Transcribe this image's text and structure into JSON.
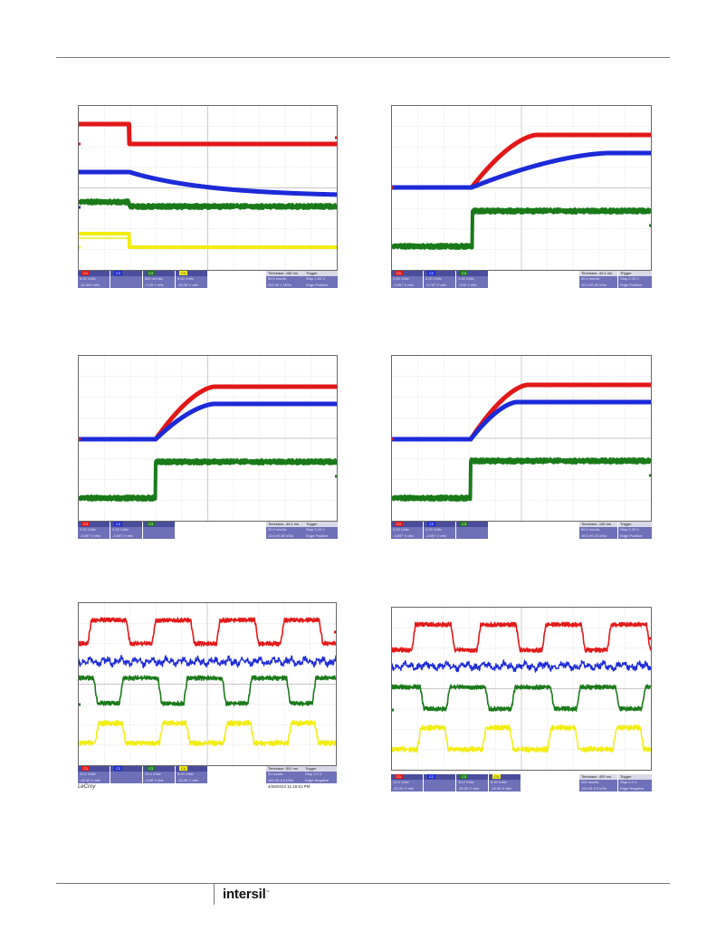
{
  "page": {
    "footer_logo": "intersil",
    "footer_logo_tm": "™"
  },
  "colors": {
    "ch1": "#e21818",
    "ch2": "#1c2ad8",
    "ch3": "#1a7a1a",
    "ch4": "#f2ec10",
    "grid": "#c7c7c7"
  },
  "scopes": [
    {
      "channels": [
        {
          "name": "C1",
          "line1": "5.00 V/div",
          "line2": "-10.60V ofst"
        },
        {
          "name": "C2",
          "line1": "",
          "line2": ""
        },
        {
          "name": "C3",
          "line1": "500 mV/div",
          "line2": "-2.00 V ofst"
        },
        {
          "name": "C4",
          "line1": "5.00 V/div",
          "line2": "-15.00 V ofst"
        }
      ],
      "timebase": {
        "label": "Timebase -180 ms",
        "line1": "50.0 ms/div",
        "line2": "200 kS  1 MS/s"
      },
      "trigger": {
        "label": "Trigger",
        "line1": "Stop  1.50 V",
        "line2": "Edge  Positive"
      },
      "timestamp": "",
      "brand": ""
    },
    {
      "channels": [
        {
          "name": "C1",
          "line1": "2.00 V/div",
          "line2": "-3.697 V ofst"
        },
        {
          "name": "C2",
          "line1": "2.00 V/div",
          "line2": "-3.797 V ofst"
        },
        {
          "name": "C3",
          "line1": "1.00 V/div",
          "line2": "-3.00 V ofst"
        }
      ],
      "timebase": {
        "label": "Timebase -40.4 ms",
        "line1": "20.0 ms/div",
        "line2": "10.0 kS  50 kS/s"
      },
      "trigger": {
        "label": "Trigger",
        "line1": "Stop  2.20 V",
        "line2": "Edge  Positive"
      },
      "timestamp": "",
      "brand": ""
    },
    {
      "channels": [
        {
          "name": "C1",
          "line1": "2.00 V/div",
          "line2": "-3.697 V ofst"
        },
        {
          "name": "C2",
          "line1": "2.00 V/div",
          "line2": "-3.697 V ofst"
        },
        {
          "name": "C3",
          "line1": "",
          "line2": ""
        }
      ],
      "timebase": {
        "label": "Timebase -40.4 ms",
        "line1": "20.0 ms/div",
        "line2": "10.0 kS  50 kS/s"
      },
      "trigger": {
        "label": "Trigger",
        "line1": "Stop  2.20 V",
        "line2": "Edge  Positive"
      },
      "timestamp": "",
      "brand": ""
    },
    {
      "channels": [
        {
          "name": "C1",
          "line1": "2.00 V/div",
          "line2": "-3.697 V ofst"
        },
        {
          "name": "C2",
          "line1": "2.00 V/div",
          "line2": "-3.697 V ofst"
        },
        {
          "name": "C3",
          "line1": "",
          "line2": ""
        }
      ],
      "timebase": {
        "label": "Timebase -190 ms",
        "line1": "50.0 ms/div",
        "line2": "10.0 kS  20 kS/s"
      },
      "trigger": {
        "label": "Trigger",
        "line1": "Stop  2.20 V",
        "line2": "Edge  Positive"
      },
      "timestamp": "",
      "brand": ""
    },
    {
      "channels": [
        {
          "name": "C1",
          "line1": "10.0 V/div",
          "line2": "-20.00 V ofst"
        },
        {
          "name": "C2",
          "line1": "",
          "line2": ""
        },
        {
          "name": "C3",
          "line1": "10.0 V/div",
          "line2": "-4.80 V ofst"
        },
        {
          "name": "C4",
          "line1": "5.00 V/div",
          "line2": "-15.00 V ofst"
        }
      ],
      "timebase": {
        "label": "Timebase -501 ms",
        "line1": "20 ms/div",
        "line2": "100 kS  5.0 kS/s"
      },
      "trigger": {
        "label": "Trigger",
        "line1": "Stop  2.2 V",
        "line2": "Edge  Negative"
      },
      "timestamp": "4/26/2012 11:16:51 PM",
      "brand": "LeCroy"
    },
    {
      "channels": [
        {
          "name": "C1",
          "line1": "10.0 V/div",
          "line2": "-20.00 V ofst"
        },
        {
          "name": "C2",
          "line1": "",
          "line2": ""
        },
        {
          "name": "C3",
          "line1": "10.0 V/div",
          "line2": "-30.00 V ofst"
        },
        {
          "name": "C4",
          "line1": "5.00 V/div",
          "line2": "-15.00 V ofst"
        }
      ],
      "timebase": {
        "label": "Timebase -400 ms",
        "line1": "200 ms/div",
        "line2": "100 kS  5.0 kS/s"
      },
      "trigger": {
        "label": "Trigger",
        "line1": "Stop  2.2 V",
        "line2": "Edge  Negative"
      },
      "timestamp": "",
      "brand": ""
    }
  ]
}
